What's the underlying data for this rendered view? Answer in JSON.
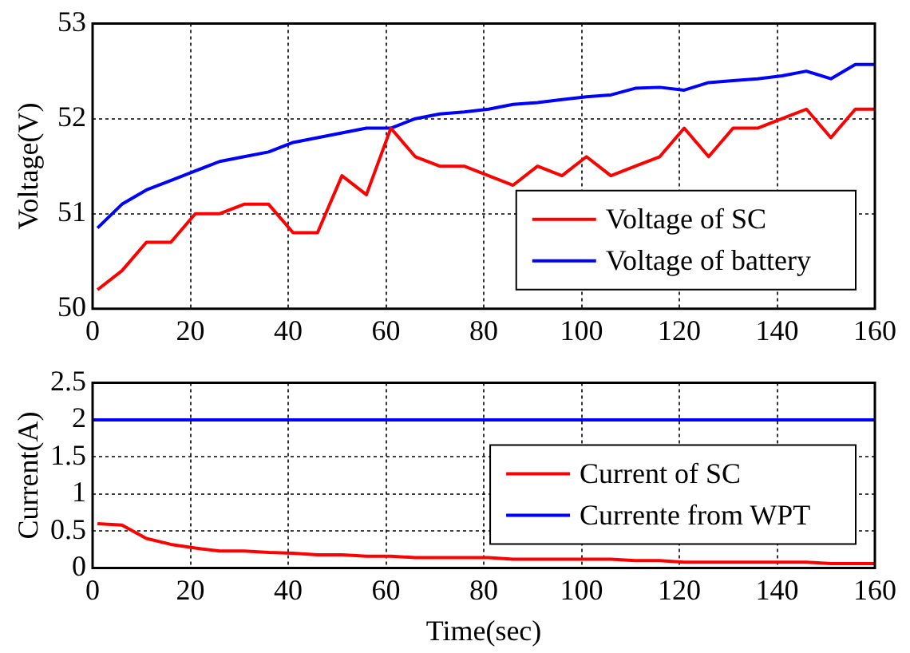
{
  "chart_data": [
    {
      "type": "line",
      "ylabel": "Voltage(V)",
      "xlim": [
        0,
        160
      ],
      "xticks": [
        0,
        20,
        40,
        60,
        80,
        100,
        120,
        140,
        160
      ],
      "ylim": [
        50,
        53
      ],
      "yticks": [
        50,
        51,
        52,
        53
      ],
      "grid": true,
      "legend": "bottom right",
      "tick_labels": "xy",
      "x": [
        1,
        6,
        11,
        16,
        21,
        26,
        31,
        36,
        41,
        46,
        51,
        56,
        61,
        66,
        71,
        76,
        81,
        86,
        91,
        96,
        101,
        106,
        111,
        116,
        121,
        126,
        131,
        136,
        141,
        146,
        151,
        156,
        160
      ],
      "series": [
        {
          "name": "Voltage of SC",
          "color": "#ff0000",
          "values": [
            50.2,
            50.4,
            50.7,
            50.7,
            51.0,
            51.0,
            51.1,
            51.1,
            50.8,
            50.8,
            51.4,
            51.2,
            51.9,
            51.6,
            51.5,
            51.5,
            51.4,
            51.3,
            51.5,
            51.4,
            51.6,
            51.4,
            51.5,
            51.6,
            51.9,
            51.6,
            51.9,
            51.9,
            52.0,
            52.1,
            51.8,
            52.1,
            52.1
          ]
        },
        {
          "name": "Voltage of battery",
          "color": "#0000ff",
          "values": [
            50.85,
            51.1,
            51.25,
            51.35,
            51.45,
            51.55,
            51.6,
            51.65,
            51.75,
            51.8,
            51.85,
            51.9,
            51.9,
            52.0,
            52.05,
            52.07,
            52.1,
            52.15,
            52.17,
            52.2,
            52.23,
            52.25,
            52.32,
            52.33,
            52.3,
            52.38,
            52.4,
            52.42,
            52.45,
            52.5,
            52.42,
            52.57,
            52.57
          ]
        }
      ]
    },
    {
      "type": "line",
      "xlabel": "Time(sec)",
      "ylabel": "Current(A)",
      "xlim": [
        0,
        160
      ],
      "xticks": [
        0,
        20,
        40,
        60,
        80,
        100,
        120,
        140,
        160
      ],
      "ylim": [
        0,
        2.5
      ],
      "yticks": [
        0,
        0.5,
        1,
        1.5,
        2,
        2.5
      ],
      "grid": true,
      "legend": "right",
      "x": [
        1,
        6,
        11,
        16,
        21,
        26,
        31,
        36,
        41,
        46,
        51,
        56,
        61,
        66,
        71,
        76,
        81,
        86,
        91,
        96,
        101,
        106,
        111,
        116,
        121,
        126,
        131,
        136,
        141,
        146,
        151,
        156,
        160
      ],
      "series": [
        {
          "name": "Current of SC",
          "color": "#ff0000",
          "values": [
            0.6,
            0.58,
            0.4,
            0.32,
            0.27,
            0.23,
            0.23,
            0.21,
            0.2,
            0.18,
            0.18,
            0.16,
            0.16,
            0.14,
            0.14,
            0.14,
            0.14,
            0.12,
            0.12,
            0.12,
            0.12,
            0.12,
            0.1,
            0.1,
            0.08,
            0.08,
            0.08,
            0.08,
            0.08,
            0.08,
            0.06,
            0.06,
            0.06
          ]
        },
        {
          "name": "Currente from WPT",
          "color": "#0000ff",
          "x": [
            0,
            160
          ],
          "values": [
            2,
            2
          ]
        }
      ]
    }
  ]
}
